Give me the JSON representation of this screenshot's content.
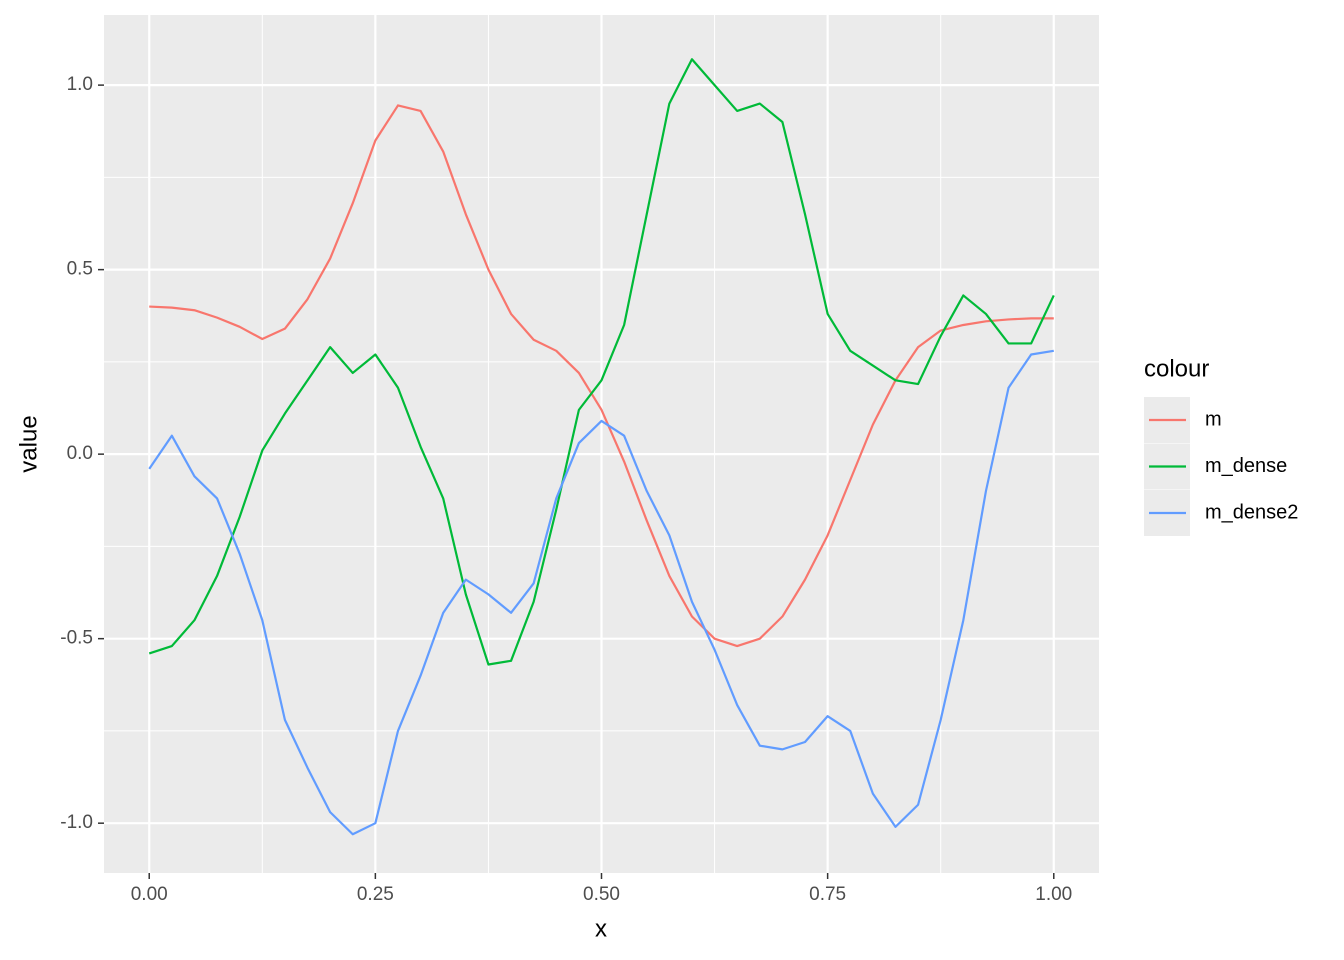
{
  "chart_data": {
    "type": "line",
    "x_label": "x",
    "y_label": "value",
    "legend_title": "colour",
    "legend_position": "right",
    "grid": true,
    "minor_grid": true,
    "xlim": [
      -0.05,
      1.05
    ],
    "ylim": [
      -1.135,
      1.19
    ],
    "xticks": [
      {
        "value": 0,
        "label": "0.00"
      },
      {
        "value": 0.25,
        "label": "0.25"
      },
      {
        "value": 0.5,
        "label": "0.50"
      },
      {
        "value": 0.75,
        "label": "0.75"
      },
      {
        "value": 1,
        "label": "1.00"
      }
    ],
    "yticks": [
      {
        "value": -1,
        "label": "-1.0"
      },
      {
        "value": -0.5,
        "label": "-0.5"
      },
      {
        "value": 0,
        "label": "0.0"
      },
      {
        "value": 0.5,
        "label": "0.5"
      },
      {
        "value": 1,
        "label": "1.0"
      }
    ],
    "x": [
      0,
      0.025,
      0.05,
      0.075,
      0.1,
      0.125,
      0.15,
      0.175,
      0.2,
      0.225,
      0.25,
      0.275,
      0.3,
      0.325,
      0.35,
      0.375,
      0.4,
      0.425,
      0.45,
      0.475,
      0.5,
      0.525,
      0.55,
      0.575,
      0.6,
      0.625,
      0.65,
      0.675,
      0.7,
      0.725,
      0.75,
      0.775,
      0.8,
      0.825,
      0.85,
      0.875,
      0.9,
      0.925,
      0.95,
      0.975,
      1
    ],
    "series": [
      {
        "name": "m",
        "color": "#F8766D",
        "values": [
          0.4,
          0.397,
          0.39,
          0.37,
          0.345,
          0.312,
          0.34,
          0.42,
          0.53,
          0.68,
          0.85,
          0.945,
          0.93,
          0.82,
          0.65,
          0.5,
          0.38,
          0.31,
          0.28,
          0.22,
          0.12,
          -0.02,
          -0.18,
          -0.33,
          -0.44,
          -0.5,
          -0.52,
          -0.5,
          -0.44,
          -0.34,
          -0.22,
          -0.07,
          0.08,
          0.2,
          0.29,
          0.335,
          0.35,
          0.36,
          0.365,
          0.368,
          0.368
        ]
      },
      {
        "name": "m_dense",
        "color": "#00BA38",
        "values": [
          -0.54,
          -0.52,
          -0.45,
          -0.33,
          -0.17,
          0.01,
          0.11,
          0.2,
          0.29,
          0.22,
          0.27,
          0.18,
          0.02,
          -0.12,
          -0.38,
          -0.57,
          -0.56,
          -0.4,
          -0.15,
          0.12,
          0.2,
          0.35,
          0.65,
          0.95,
          1.07,
          1.0,
          0.93,
          0.95,
          0.9,
          0.65,
          0.38,
          0.28,
          0.24,
          0.2,
          0.19,
          0.32,
          0.43,
          0.38,
          0.3,
          0.3,
          0.43
        ]
      },
      {
        "name": "m_dense2",
        "color": "#619CFF",
        "values": [
          -0.04,
          0.05,
          -0.06,
          -0.12,
          -0.27,
          -0.45,
          -0.72,
          -0.85,
          -0.97,
          -1.03,
          -1.0,
          -0.75,
          -0.6,
          -0.43,
          -0.34,
          -0.38,
          -0.43,
          -0.35,
          -0.12,
          0.03,
          0.09,
          0.05,
          -0.1,
          -0.22,
          -0.4,
          -0.53,
          -0.68,
          -0.79,
          -0.8,
          -0.78,
          -0.71,
          -0.75,
          -0.92,
          -1.01,
          -0.95,
          -0.72,
          -0.45,
          -0.1,
          0.18,
          0.27,
          0.28
        ]
      }
    ]
  }
}
